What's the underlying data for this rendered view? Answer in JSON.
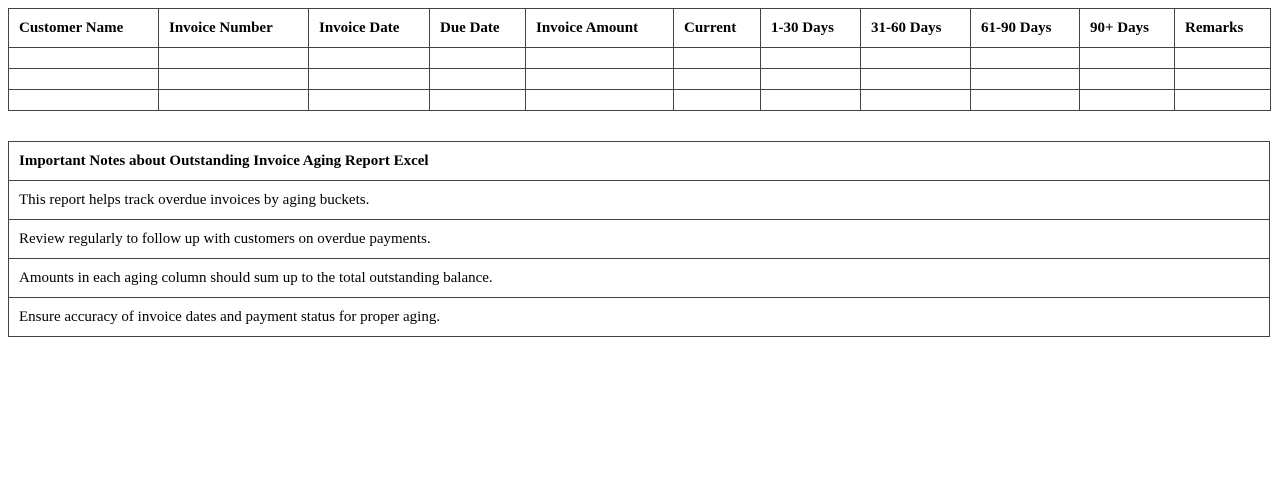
{
  "aging_table": {
    "headers": [
      "Customer Name",
      "Invoice Number",
      "Invoice Date",
      "Due Date",
      "Invoice Amount",
      "Current",
      "1-30 Days",
      "31-60 Days",
      "61-90 Days",
      "90+ Days",
      "Remarks"
    ],
    "rows": [
      [
        "",
        "",
        "",
        "",
        "",
        "",
        "",
        "",
        "",
        "",
        ""
      ],
      [
        "",
        "",
        "",
        "",
        "",
        "",
        "",
        "",
        "",
        "",
        ""
      ],
      [
        "",
        "",
        "",
        "",
        "",
        "",
        "",
        "",
        "",
        "",
        ""
      ]
    ]
  },
  "notes": {
    "title": "Important Notes about Outstanding Invoice Aging Report Excel",
    "items": [
      "This report helps track overdue invoices by aging buckets.",
      "Review regularly to follow up with customers on overdue payments.",
      "Amounts in each aging column should sum up to the total outstanding balance.",
      "Ensure accuracy of invoice dates and payment status for proper aging."
    ]
  }
}
